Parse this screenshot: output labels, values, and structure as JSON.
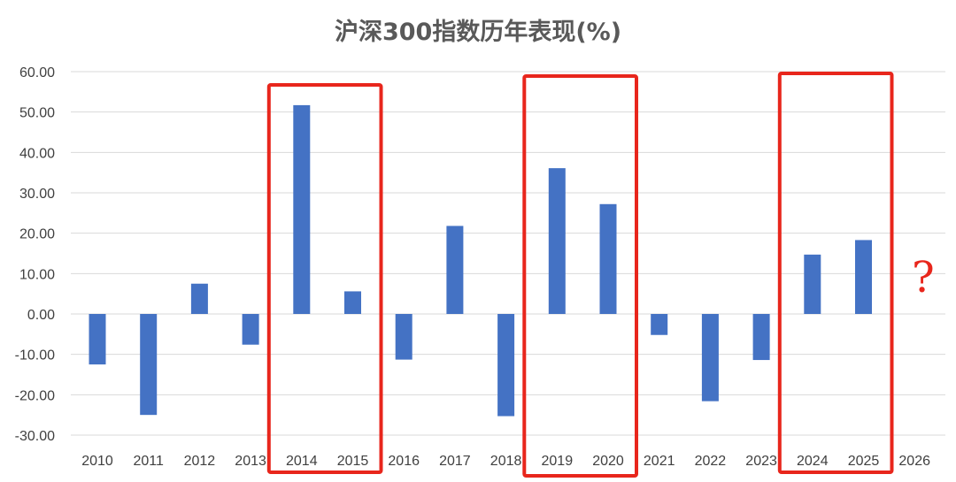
{
  "chart_data": {
    "type": "bar",
    "title": "沪深300指数历年表现(%)",
    "xlabel": "",
    "ylabel": "",
    "categories": [
      "2010",
      "2011",
      "2012",
      "2013",
      "2014",
      "2015",
      "2016",
      "2017",
      "2018",
      "2019",
      "2020",
      "2021",
      "2022",
      "2023",
      "2024",
      "2025",
      "2026"
    ],
    "values": [
      -12.5,
      -25.0,
      7.5,
      -7.6,
      51.7,
      5.6,
      -11.3,
      21.8,
      -25.3,
      36.1,
      27.2,
      -5.2,
      -21.6,
      -11.4,
      14.7,
      18.3,
      null
    ],
    "ylim": [
      -30,
      60
    ],
    "yticks": [
      "60.00",
      "50.00",
      "40.00",
      "30.00",
      "20.00",
      "10.00",
      "0.00",
      "-10.00",
      "-20.00",
      "-30.00"
    ],
    "grid": true,
    "bar_color": "#4472c4",
    "highlight_color": "#e8261c",
    "highlight_groups": [
      [
        "2014",
        "2015"
      ],
      [
        "2019",
        "2020"
      ],
      [
        "2024",
        "2025"
      ]
    ],
    "annotation": "?"
  }
}
